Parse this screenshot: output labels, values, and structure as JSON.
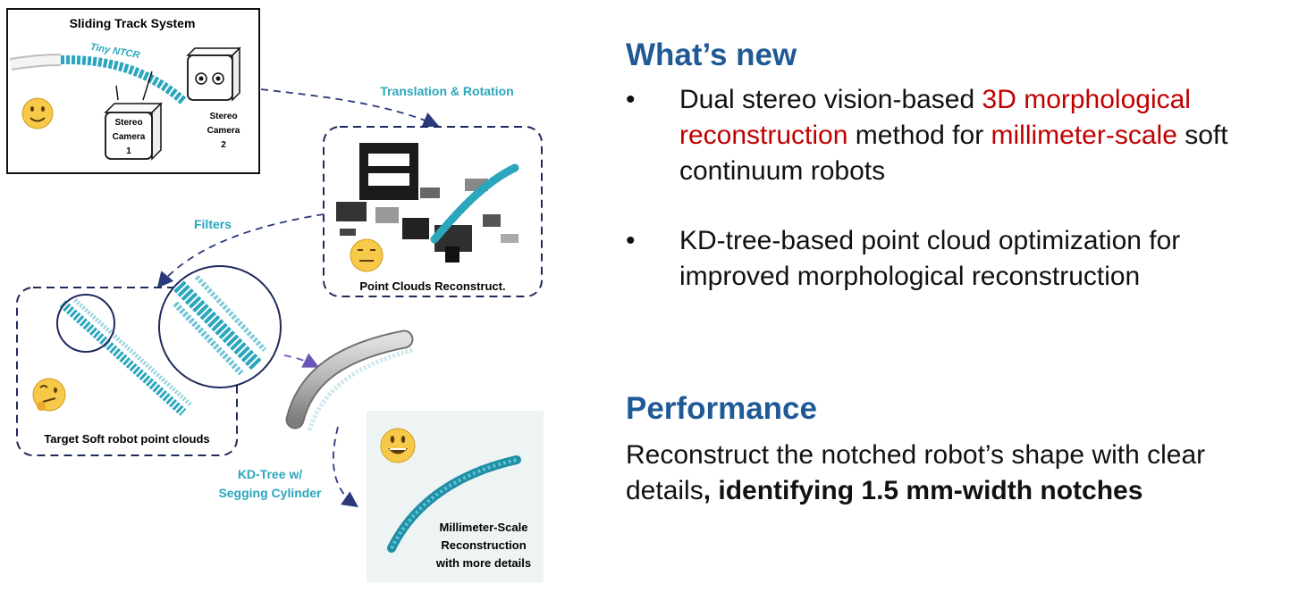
{
  "diagram": {
    "sliding_track_title": "Sliding Track System",
    "robot_label": "Tiny NTCR",
    "camera1_label": [
      "Stereo",
      "Camera",
      "1"
    ],
    "camera2_label": [
      "Stereo",
      "Camera",
      "2"
    ],
    "arrow_translation_label": "Translation & Rotation",
    "point_clouds_label": "Point Clouds Reconstruct.",
    "arrow_filters_label": "Filters",
    "target_label": "Target Soft robot point clouds",
    "kd_tree_label": [
      "KD-Tree w/",
      "Segging Cylinder"
    ],
    "final_label": [
      "Millimeter-Scale",
      "Reconstruction",
      "with more details"
    ],
    "colors": {
      "accent": "#2aa6bd",
      "dashed_box": "#1f2a5c",
      "arrow_purple": "#7b5fc1"
    }
  },
  "whats_new": {
    "heading": "What’s new",
    "bullet_glyph": "•",
    "bullets": [
      {
        "p1": "Dual stereo vision-based ",
        "h1": "3D morphological reconstruction",
        "p2": " method for ",
        "h2": "millimeter-scale",
        "p3": " soft continuum robots"
      },
      {
        "text": "KD-tree-based point cloud optimization for improved morphological reconstruction"
      }
    ],
    "highlight_color": "#c00000"
  },
  "performance": {
    "heading": "Performance",
    "text": "Reconstruct the notched robot’s shape with clear details",
    "bold_text": ", identifying 1.5 mm-width notches"
  }
}
